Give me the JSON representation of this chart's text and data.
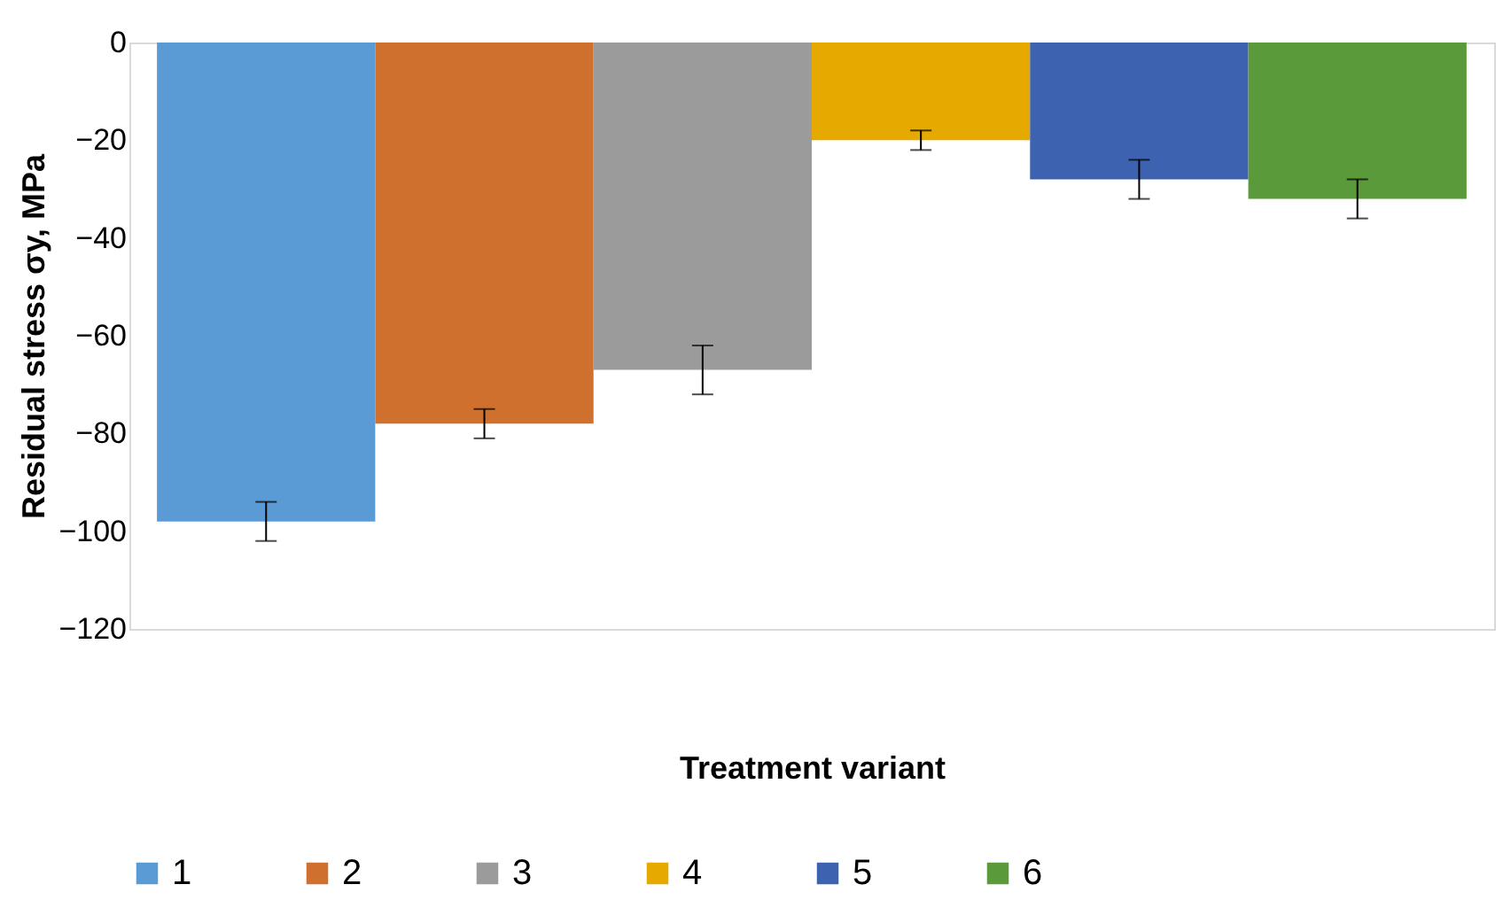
{
  "chart_data": {
    "type": "bar",
    "xlabel": "Treatment variant",
    "ylabel": "Residual stress σy, MPa",
    "categories": [
      null
    ],
    "series": [
      {
        "name": "1",
        "color": "#5b9bd5",
        "values": [
          -98
        ],
        "errors": [
          4
        ]
      },
      {
        "name": "2",
        "color": "#d0702e",
        "values": [
          -78
        ],
        "errors": [
          3
        ]
      },
      {
        "name": "3",
        "color": "#9b9b9b",
        "values": [
          -67
        ],
        "errors": [
          5
        ]
      },
      {
        "name": "4",
        "color": "#e5a900",
        "values": [
          -20
        ],
        "errors": [
          2
        ]
      },
      {
        "name": "5",
        "color": "#3c62b0",
        "values": [
          -28
        ],
        "errors": [
          4
        ]
      },
      {
        "name": "6",
        "color": "#5a9a3a",
        "values": [
          -32
        ],
        "errors": [
          4
        ]
      }
    ],
    "ylim": [
      -120,
      0
    ],
    "yticks": [
      0,
      -20,
      -40,
      -60,
      -80,
      -100,
      -120
    ],
    "grid": false,
    "legend": "bottom",
    "tick_labels": "y"
  }
}
